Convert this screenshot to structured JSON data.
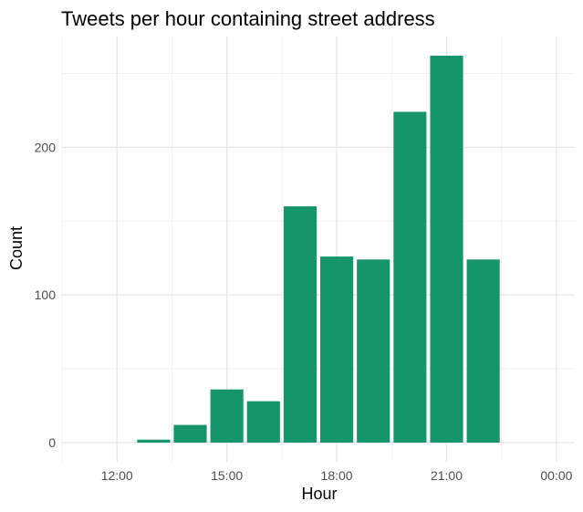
{
  "chart_data": {
    "type": "bar",
    "title": "Tweets per hour containing street address",
    "xlabel": "Hour",
    "ylabel": "Count",
    "x_hours": [
      13,
      14,
      15,
      16,
      17,
      18,
      19,
      20,
      21,
      22
    ],
    "values": [
      2,
      12,
      36,
      28,
      160,
      126,
      124,
      224,
      262,
      124
    ],
    "x_tick_labels": [
      "12:00",
      "15:00",
      "18:00",
      "21:00",
      "00:00"
    ],
    "x_tick_hours": [
      12,
      15,
      18,
      21,
      24
    ],
    "y_ticks": [
      0,
      100,
      200
    ],
    "xlim": [
      10.5,
      24.5
    ],
    "ylim": [
      -13,
      275
    ],
    "bar_color": "#16956a",
    "grid": true,
    "legend": "none"
  }
}
